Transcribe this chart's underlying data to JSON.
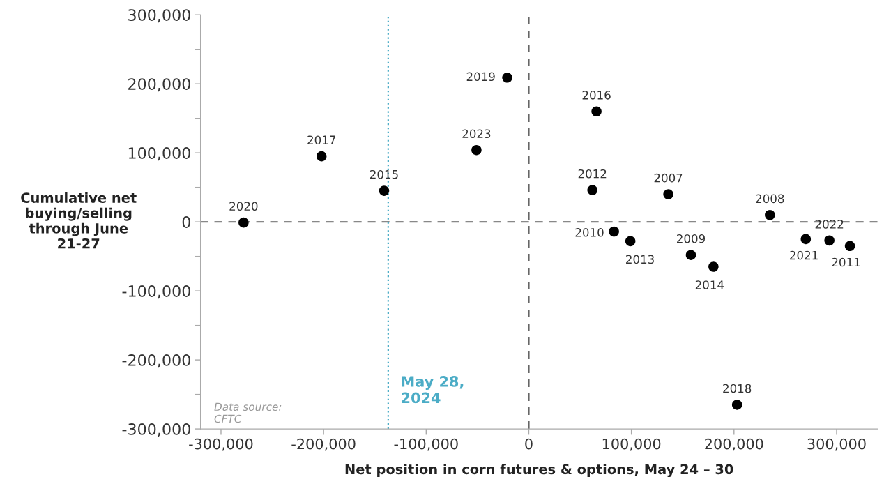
{
  "chart_data": {
    "type": "scatter",
    "xlabel": "Net position in corn futures & options, May 24 – 30",
    "ylabel": "Cumulative net\nbuying/selling\nthrough June\n21-27",
    "x": [
      -278000,
      -202000,
      -141000,
      -51000,
      -21000,
      66000,
      62000,
      136000,
      235000,
      83000,
      99000,
      158000,
      180000,
      270000,
      293000,
      313000,
      203000
    ],
    "series": [
      {
        "color": "#000000",
        "values": [
          -1000,
          95000,
          45000,
          104000,
          209000,
          160000,
          46000,
          40000,
          10000,
          -14000,
          -28000,
          -48000,
          -65000,
          -25000,
          -27000,
          -35000,
          -265000
        ]
      }
    ],
    "marker": "circle",
    "xlim": [
      -320000,
      340000
    ],
    "ylim": [
      -300000,
      300000
    ],
    "xticks": [
      {
        "value": -300000,
        "label": "-300,000"
      },
      {
        "value": -200000,
        "label": "-200,000"
      },
      {
        "value": -100000,
        "label": "-100,000"
      },
      0,
      {
        "value": 100000,
        "label": "100,000"
      },
      {
        "value": 200000,
        "label": "200,000"
      },
      {
        "value": 300000,
        "label": "300,000"
      }
    ],
    "yticks": [
      {
        "value": -300000,
        "label": "-300,000"
      },
      {
        "value": -250000,
        "label": null
      },
      {
        "value": -200000,
        "label": "-200,000"
      },
      {
        "value": -150000,
        "label": null
      },
      {
        "value": -100000,
        "label": "-100,000"
      },
      {
        "value": -50000,
        "label": null
      },
      0,
      {
        "value": 50000,
        "label": null
      },
      {
        "value": 100000,
        "label": "100,000"
      },
      {
        "value": 150000,
        "label": null
      },
      {
        "value": 200000,
        "label": "200,000"
      },
      {
        "value": 250000,
        "label": null
      },
      {
        "value": 300000,
        "label": "300,000"
      }
    ],
    "grid": false,
    "legend": false,
    "ref_lines": [
      {
        "axis": "x",
        "value": 0,
        "color": "#666666",
        "line_style": "dashed"
      },
      {
        "axis": "y",
        "value": 0,
        "color": "#888888",
        "line_style": "dashed"
      },
      {
        "axis": "x",
        "value": -137000,
        "label": "May 28,\n2024",
        "color": "#4bacc6",
        "line_style": "dotted"
      }
    ],
    "annotations": [
      {
        "text": "2020",
        "x": -278000,
        "y": -1000
      },
      {
        "text": "2017",
        "x": -202000,
        "y": 95000
      },
      {
        "text": "2015",
        "x": -141000,
        "y": 45000
      },
      {
        "text": "2023",
        "x": -51000,
        "y": 104000
      },
      {
        "text": "2019",
        "x": -21000,
        "y": 209000
      },
      {
        "text": "2016",
        "x": 66000,
        "y": 160000
      },
      {
        "text": "2012",
        "x": 62000,
        "y": 46000
      },
      {
        "text": "2007",
        "x": 136000,
        "y": 40000
      },
      {
        "text": "2008",
        "x": 235000,
        "y": 10000
      },
      {
        "text": "2010",
        "x": 83000,
        "y": -14000
      },
      {
        "text": "2013",
        "x": 99000,
        "y": -28000
      },
      {
        "text": "2009",
        "x": 158000,
        "y": -48000
      },
      {
        "text": "2014",
        "x": 180000,
        "y": -65000
      },
      {
        "text": "2021",
        "x": 270000,
        "y": -25000
      },
      {
        "text": "2022",
        "x": 293000,
        "y": -27000
      },
      {
        "text": "2011",
        "x": 313000,
        "y": -35000
      },
      {
        "text": "2018",
        "x": 203000,
        "y": -265000
      },
      "Data source:\nCFTC"
    ]
  }
}
